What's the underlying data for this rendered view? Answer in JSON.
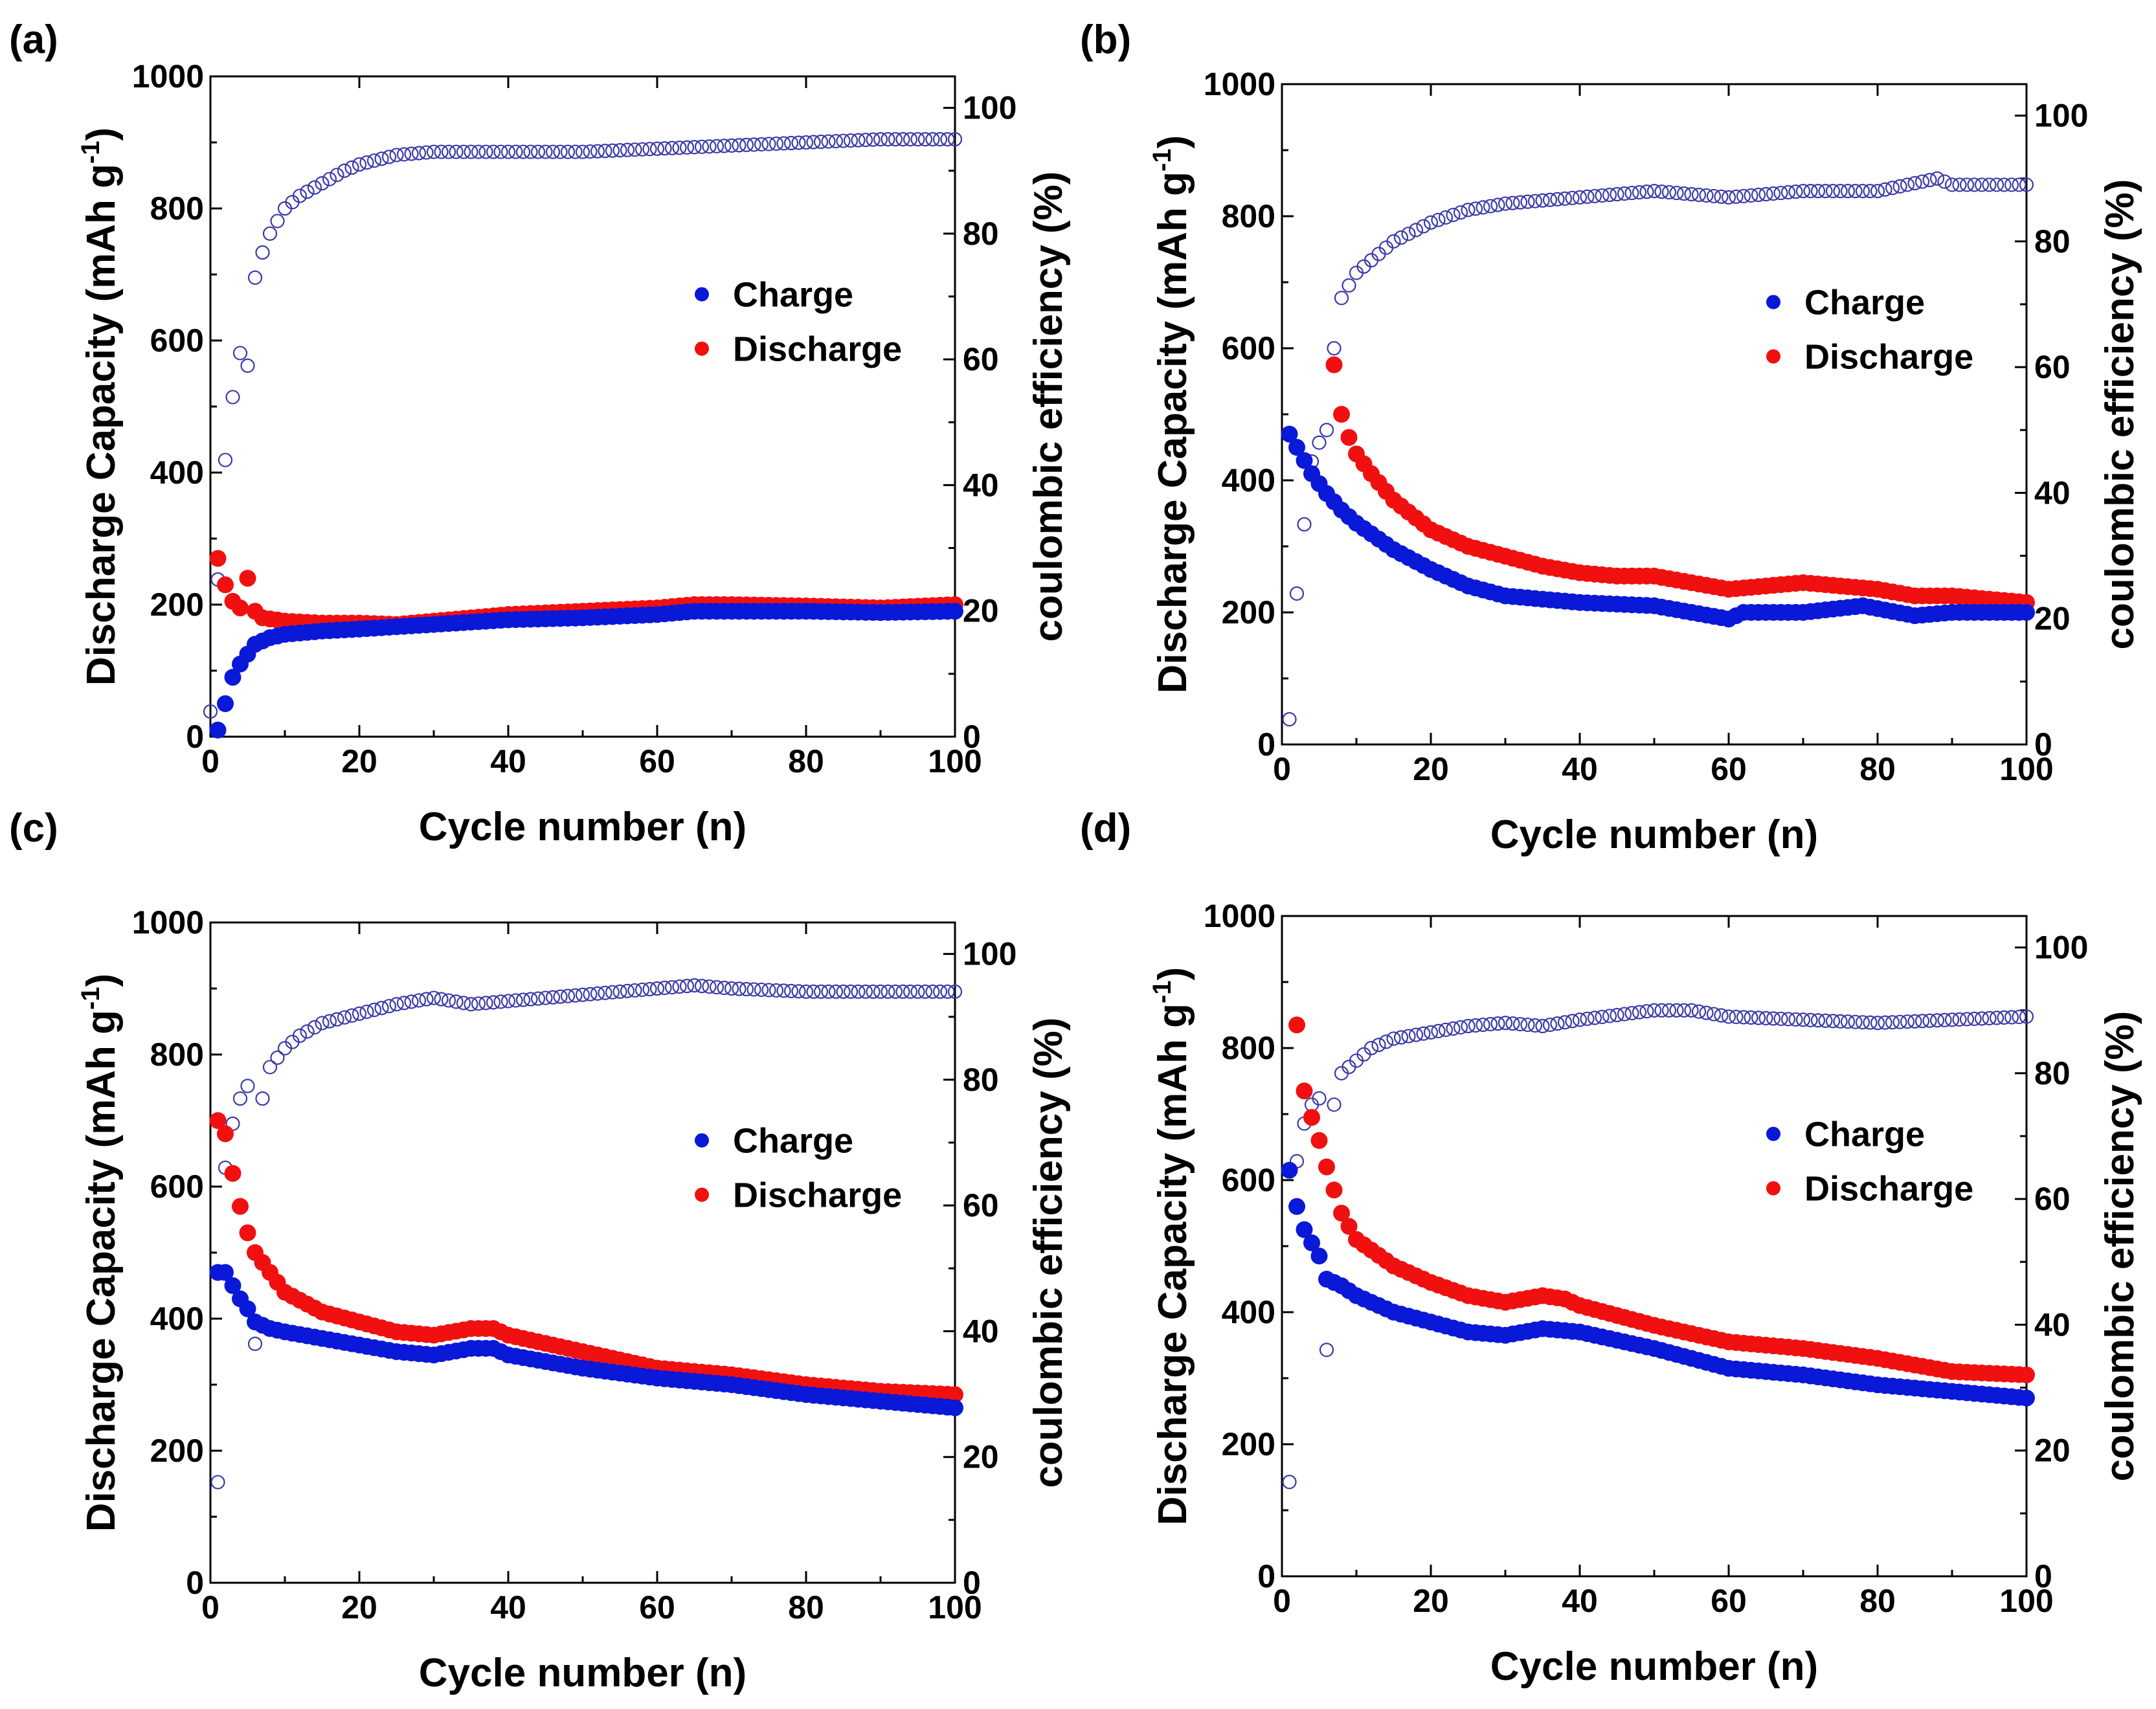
{
  "chart_data": [
    {
      "type": "scatter",
      "panel_label": "(a)",
      "xlabel": "Cycle number (n)",
      "ylabel": "Discharge Capacity (mAh g",
      "ylabel_sup": "-1",
      "ylabel_close": ")",
      "y2label": "coulombic efficiency (%)",
      "xlim": [
        0,
        100
      ],
      "ylim": [
        0,
        1000
      ],
      "y2lim": [
        0,
        105
      ],
      "xticks": [
        0,
        20,
        40,
        60,
        80,
        100
      ],
      "yticks": [
        0,
        200,
        400,
        600,
        800,
        1000
      ],
      "y2ticks": [
        0,
        20,
        40,
        60,
        80,
        100
      ],
      "legend": {
        "position": "center-right",
        "entries": [
          "Charge",
          "Discharge"
        ]
      },
      "colors": {
        "charge": "#0a18d8",
        "discharge": "#f01010",
        "efficiency": "#3a3aa8"
      },
      "series": [
        {
          "name": "Charge",
          "x": [
            1,
            2,
            3,
            4,
            5,
            6,
            8,
            10,
            15,
            20,
            30,
            40,
            50,
            60,
            65,
            70,
            80,
            90,
            100
          ],
          "values": [
            10,
            50,
            90,
            110,
            125,
            140,
            150,
            155,
            160,
            163,
            170,
            177,
            180,
            185,
            190,
            190,
            190,
            188,
            190
          ]
        },
        {
          "name": "Discharge",
          "x": [
            1,
            2,
            3,
            4,
            5,
            6,
            7,
            10,
            15,
            20,
            25,
            30,
            40,
            50,
            60,
            65,
            70,
            80,
            90,
            100
          ],
          "values": [
            270,
            230,
            205,
            195,
            240,
            190,
            180,
            175,
            172,
            172,
            170,
            175,
            185,
            190,
            195,
            200,
            200,
            198,
            195,
            200
          ]
        },
        {
          "name": "Coulombic efficiency",
          "axis": "right",
          "x": [
            0,
            1,
            2,
            3,
            4,
            5,
            6,
            7,
            8,
            9,
            10,
            12,
            15,
            18,
            20,
            25,
            30,
            40,
            50,
            60,
            70,
            80,
            90,
            100
          ],
          "values": [
            4,
            25,
            44,
            54,
            61,
            59,
            73,
            77,
            80,
            82,
            84,
            86,
            88,
            90,
            91,
            92.5,
            93,
            93,
            93,
            93.5,
            94,
            94.5,
            95,
            95
          ]
        }
      ]
    },
    {
      "type": "scatter",
      "panel_label": "(b)",
      "xlabel": "Cycle number (n)",
      "ylabel": "Discharge Capacity (mAh g",
      "ylabel_sup": "-1",
      "ylabel_close": ")",
      "y2label": "coulombic efficiency (%)",
      "xlim": [
        0,
        100
      ],
      "ylim": [
        0,
        1000
      ],
      "y2lim": [
        0,
        105
      ],
      "xticks": [
        0,
        20,
        40,
        60,
        80,
        100
      ],
      "yticks": [
        0,
        200,
        400,
        600,
        800,
        1000
      ],
      "y2ticks": [
        0,
        20,
        40,
        60,
        80,
        100
      ],
      "legend": {
        "position": "center-right",
        "entries": [
          "Charge",
          "Discharge"
        ]
      },
      "colors": {
        "charge": "#0a18d8",
        "discharge": "#f01010",
        "efficiency": "#3a3aa8"
      },
      "series": [
        {
          "name": "Charge",
          "x": [
            1,
            2,
            4,
            6,
            8,
            10,
            15,
            20,
            25,
            30,
            40,
            50,
            55,
            60,
            62,
            70,
            78,
            85,
            90,
            100
          ],
          "values": [
            470,
            450,
            410,
            380,
            355,
            335,
            295,
            265,
            240,
            225,
            215,
            210,
            200,
            190,
            200,
            200,
            210,
            195,
            200,
            200
          ]
        },
        {
          "name": "Discharge",
          "x": [
            7,
            8,
            9,
            10,
            12,
            15,
            20,
            25,
            30,
            35,
            40,
            45,
            50,
            55,
            60,
            65,
            70,
            75,
            80,
            85,
            90,
            100
          ],
          "values": [
            575,
            500,
            465,
            440,
            410,
            370,
            325,
            300,
            285,
            270,
            260,
            255,
            255,
            245,
            235,
            240,
            245,
            240,
            235,
            225,
            225,
            215
          ]
        },
        {
          "name": "Coulombic efficiency",
          "axis": "right",
          "x": [
            1,
            2,
            3,
            4,
            5,
            6,
            7,
            8,
            9,
            10,
            12,
            15,
            20,
            25,
            30,
            40,
            50,
            60,
            70,
            80,
            88,
            90,
            100
          ],
          "values": [
            4,
            24,
            35,
            45,
            48,
            50,
            63,
            71,
            73,
            75,
            77,
            80,
            83,
            85,
            86,
            87,
            88,
            87,
            88,
            88,
            90,
            89,
            89
          ]
        }
      ]
    },
    {
      "type": "scatter",
      "panel_label": "(c)",
      "xlabel": "Cycle number (n)",
      "ylabel": "Discharge Capacity (mAh g",
      "ylabel_sup": "-1",
      "ylabel_close": ")",
      "y2label": "coulombic efficiency (%)",
      "xlim": [
        0,
        100
      ],
      "ylim": [
        0,
        1000
      ],
      "y2lim": [
        0,
        105
      ],
      "xticks": [
        0,
        20,
        40,
        60,
        80,
        100
      ],
      "yticks": [
        0,
        200,
        400,
        600,
        800,
        1000
      ],
      "y2ticks": [
        0,
        20,
        40,
        60,
        80,
        100
      ],
      "legend": {
        "position": "center-right",
        "entries": [
          "Charge",
          "Discharge"
        ]
      },
      "colors": {
        "charge": "#0a18d8",
        "discharge": "#f01010",
        "efficiency": "#3a3aa8"
      },
      "series": [
        {
          "name": "Charge",
          "x": [
            1,
            2,
            3,
            4,
            5,
            6,
            8,
            10,
            15,
            20,
            25,
            30,
            35,
            38,
            40,
            50,
            60,
            70,
            80,
            90,
            100
          ],
          "values": [
            470,
            470,
            450,
            430,
            415,
            395,
            385,
            380,
            370,
            360,
            350,
            345,
            355,
            355,
            345,
            325,
            310,
            300,
            285,
            275,
            265
          ]
        },
        {
          "name": "Discharge",
          "x": [
            1,
            2,
            3,
            4,
            5,
            6,
            8,
            10,
            15,
            20,
            25,
            30,
            35,
            38,
            40,
            50,
            60,
            70,
            80,
            90,
            100
          ],
          "values": [
            700,
            680,
            620,
            570,
            530,
            500,
            470,
            440,
            410,
            395,
            380,
            375,
            385,
            385,
            375,
            350,
            325,
            315,
            300,
            290,
            285
          ]
        },
        {
          "name": "Coulombic efficiency",
          "axis": "right",
          "x": [
            1,
            2,
            3,
            4,
            5,
            6,
            7,
            8,
            10,
            12,
            15,
            20,
            25,
            30,
            35,
            40,
            50,
            60,
            65,
            70,
            80,
            90,
            100
          ],
          "values": [
            16,
            66,
            73,
            77,
            79,
            38,
            77,
            82,
            85,
            87,
            89,
            90.5,
            92,
            93,
            92,
            92.5,
            93.5,
            94.5,
            95,
            94.5,
            94,
            94,
            94
          ]
        }
      ]
    },
    {
      "type": "scatter",
      "panel_label": "(d)",
      "xlabel": "Cycle number (n)",
      "ylabel": "Discharge Capacity (mAh g",
      "ylabel_sup": "-1",
      "ylabel_close": ")",
      "y2label": "coulombic efficiency (%)",
      "xlim": [
        0,
        100
      ],
      "ylim": [
        0,
        1000
      ],
      "y2lim": [
        0,
        105
      ],
      "xticks": [
        0,
        20,
        40,
        60,
        80,
        100
      ],
      "yticks": [
        0,
        200,
        400,
        600,
        800,
        1000
      ],
      "y2ticks": [
        0,
        20,
        40,
        60,
        80,
        100
      ],
      "legend": {
        "position": "center-right",
        "entries": [
          "Charge",
          "Discharge"
        ]
      },
      "colors": {
        "charge": "#0a18d8",
        "discharge": "#f01010",
        "efficiency": "#3a3aa8"
      },
      "series": [
        {
          "name": "Charge",
          "x": [
            1,
            2,
            3,
            4,
            5,
            6,
            8,
            10,
            15,
            20,
            25,
            30,
            35,
            40,
            50,
            60,
            70,
            80,
            90,
            100
          ],
          "values": [
            615,
            560,
            525,
            505,
            485,
            450,
            440,
            425,
            400,
            385,
            370,
            365,
            375,
            370,
            345,
            315,
            305,
            290,
            280,
            270
          ]
        },
        {
          "name": "Discharge",
          "x": [
            2,
            3,
            4,
            5,
            6,
            7,
            8,
            10,
            15,
            20,
            25,
            30,
            35,
            38,
            40,
            50,
            60,
            70,
            80,
            90,
            100
          ],
          "values": [
            835,
            735,
            695,
            660,
            620,
            585,
            550,
            510,
            470,
            445,
            425,
            415,
            425,
            420,
            410,
            380,
            355,
            345,
            330,
            310,
            305
          ]
        },
        {
          "name": "Coulombic efficiency",
          "axis": "right",
          "x": [
            1,
            2,
            3,
            4,
            5,
            6,
            7,
            8,
            10,
            12,
            15,
            20,
            25,
            30,
            35,
            40,
            50,
            55,
            60,
            70,
            80,
            90,
            100
          ],
          "values": [
            15,
            66,
            72,
            75,
            76,
            36,
            75,
            80,
            82,
            84,
            85.5,
            86.5,
            87.5,
            88,
            87.5,
            88.5,
            90,
            90,
            89,
            88.5,
            88,
            88.5,
            89
          ]
        }
      ]
    }
  ]
}
